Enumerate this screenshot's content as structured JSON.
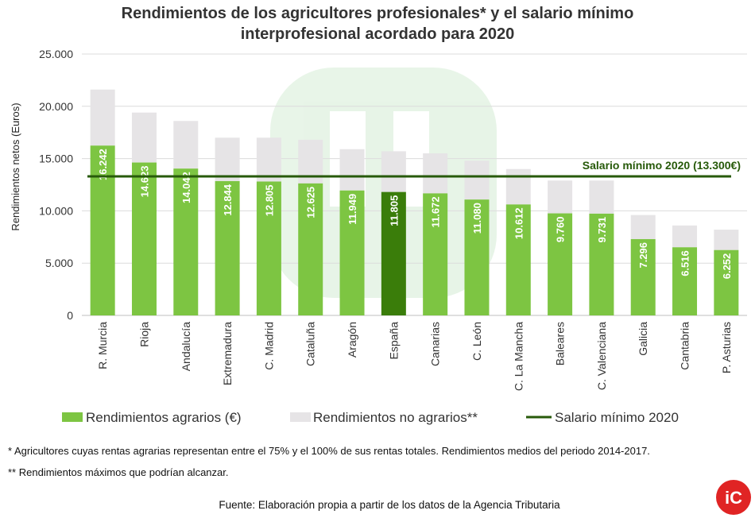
{
  "title_line1": "Rendimientos de los agricultores profesionales* y el salario mínimo",
  "title_line2": "interprofesional acordado para 2020",
  "chart_data": {
    "type": "bar",
    "stacked": true,
    "categories": [
      "R. Murcia",
      "Rioja",
      "Andalucía",
      "Extremadura",
      "C. Madrid",
      "Cataluña",
      "Aragón",
      "España",
      "Canarias",
      "C. León",
      "C. La Mancha",
      "Baleares",
      "C. Valenciana",
      "Galicia",
      "Cantabria",
      "P. Asturias"
    ],
    "series": [
      {
        "name": "Rendimientos agrarios (€)",
        "color": "#7dc542",
        "values": [
          16242,
          14623,
          14042,
          12844,
          12805,
          12625,
          11949,
          11805,
          11672,
          11080,
          10612,
          9760,
          9731,
          7296,
          6516,
          6252
        ],
        "labels": [
          "16.242",
          "14.623",
          "14.042",
          "12.844",
          "12.805",
          "12.625",
          "11.949",
          "11.805",
          "11.672",
          "11.080",
          "10.612",
          "9.760",
          "9.731",
          "7.296",
          "6.516",
          "6.252"
        ]
      },
      {
        "name": "Rendimientos no agrarios**",
        "color": "#e6e4e6",
        "totals": [
          21600,
          19400,
          18600,
          17000,
          17000,
          16800,
          15900,
          15700,
          15500,
          14800,
          14000,
          12900,
          12900,
          9600,
          8600,
          8200
        ]
      }
    ],
    "highlight_category": "España",
    "highlight_color": "#3a7d0a",
    "reference_line": {
      "name": "Salario mínimo 2020",
      "value": 13300,
      "label": "Salario mínimo 2020 (13.300€)",
      "color": "#275a0a"
    },
    "ylabel": "Rendimientos netos (Euros)",
    "ylim": [
      0,
      25000
    ],
    "yticks": [
      0,
      5000,
      10000,
      15000,
      20000,
      25000
    ],
    "ytick_labels": [
      "0",
      "5.000",
      "10.000",
      "15.000",
      "20.000",
      "25.000"
    ],
    "legend": [
      "Rendimientos agrarios (€)",
      "Rendimientos no agrarios**",
      "Salario mínimo 2020"
    ],
    "legend_position": "bottom"
  },
  "footnote1": "* Agricultores cuyas rentas agrarias representan entre el 75% y el 100% de sus rentas totales. Rendimientos medios del periodo 2014-2017.",
  "footnote2": "** Rendimientos máximos que podrían alcanzar.",
  "source": "Fuente: Elaboración propia a partir de los datos de la Agencia Tributaria",
  "logo_text": "iC"
}
